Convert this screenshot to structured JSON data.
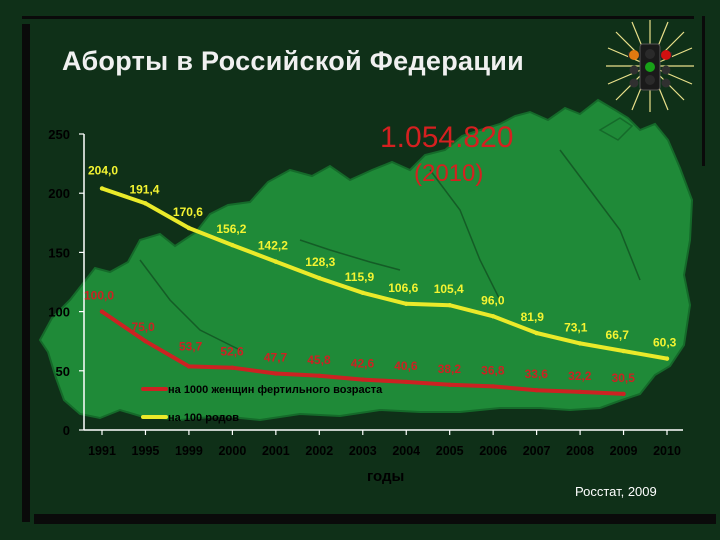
{
  "slide": {
    "title": "Аборты в Российской Федерации",
    "total": "1.054.820",
    "total_year": "(2010)",
    "source": "Росстат, 2009"
  },
  "chart_data": {
    "type": "line",
    "xlabel": "годы",
    "categories": [
      "1991",
      "1995",
      "1999",
      "2000",
      "2001",
      "2002",
      "2003",
      "2004",
      "2005",
      "2006",
      "2007",
      "2008",
      "2009",
      "2010"
    ],
    "ylim": [
      0,
      250
    ],
    "yticks": [
      0,
      50,
      100,
      150,
      200,
      250
    ],
    "grid": false,
    "legend_position": "bottom-left",
    "series": [
      {
        "name": "на 1000 женщин фертильного возраста",
        "color": "#cc2222",
        "label_color": "#cc2222",
        "values": [
          100.0,
          75.0,
          53.7,
          52.6,
          47.7,
          45.8,
          42.6,
          40.6,
          38.2,
          36.8,
          33.6,
          32.2,
          30.5,
          null
        ],
        "labels": [
          "100,0",
          "75,0",
          "53,7",
          "52,6",
          "47,7",
          "45,8",
          "42,6",
          "40,6",
          "38,2",
          "36,8",
          "33,6",
          "32,2",
          "30,5",
          ""
        ]
      },
      {
        "name": "на 100 родов",
        "color": "#eaea2a",
        "label_color": "#f4f432",
        "values": [
          204.0,
          191.4,
          170.6,
          156.2,
          142.2,
          128.3,
          115.9,
          106.6,
          105.4,
          96.0,
          81.9,
          73.1,
          66.7,
          60.3
        ],
        "labels": [
          "204,0",
          "191,4",
          "170,6",
          "156,2",
          "142,2",
          "128,3",
          "115,9",
          "106,6",
          "105,4",
          "96,0",
          "81,9",
          "73,1",
          "66,7",
          "60,3"
        ]
      }
    ]
  },
  "colors": {
    "background": "#0f3018",
    "map": "#1f8a38",
    "map_edge": "#156a2a",
    "title": "#f0f0f0",
    "highlight": "#d52020",
    "axis": "#ffffff"
  },
  "icons": {
    "logo": "traffic-light-emblem-icon"
  }
}
